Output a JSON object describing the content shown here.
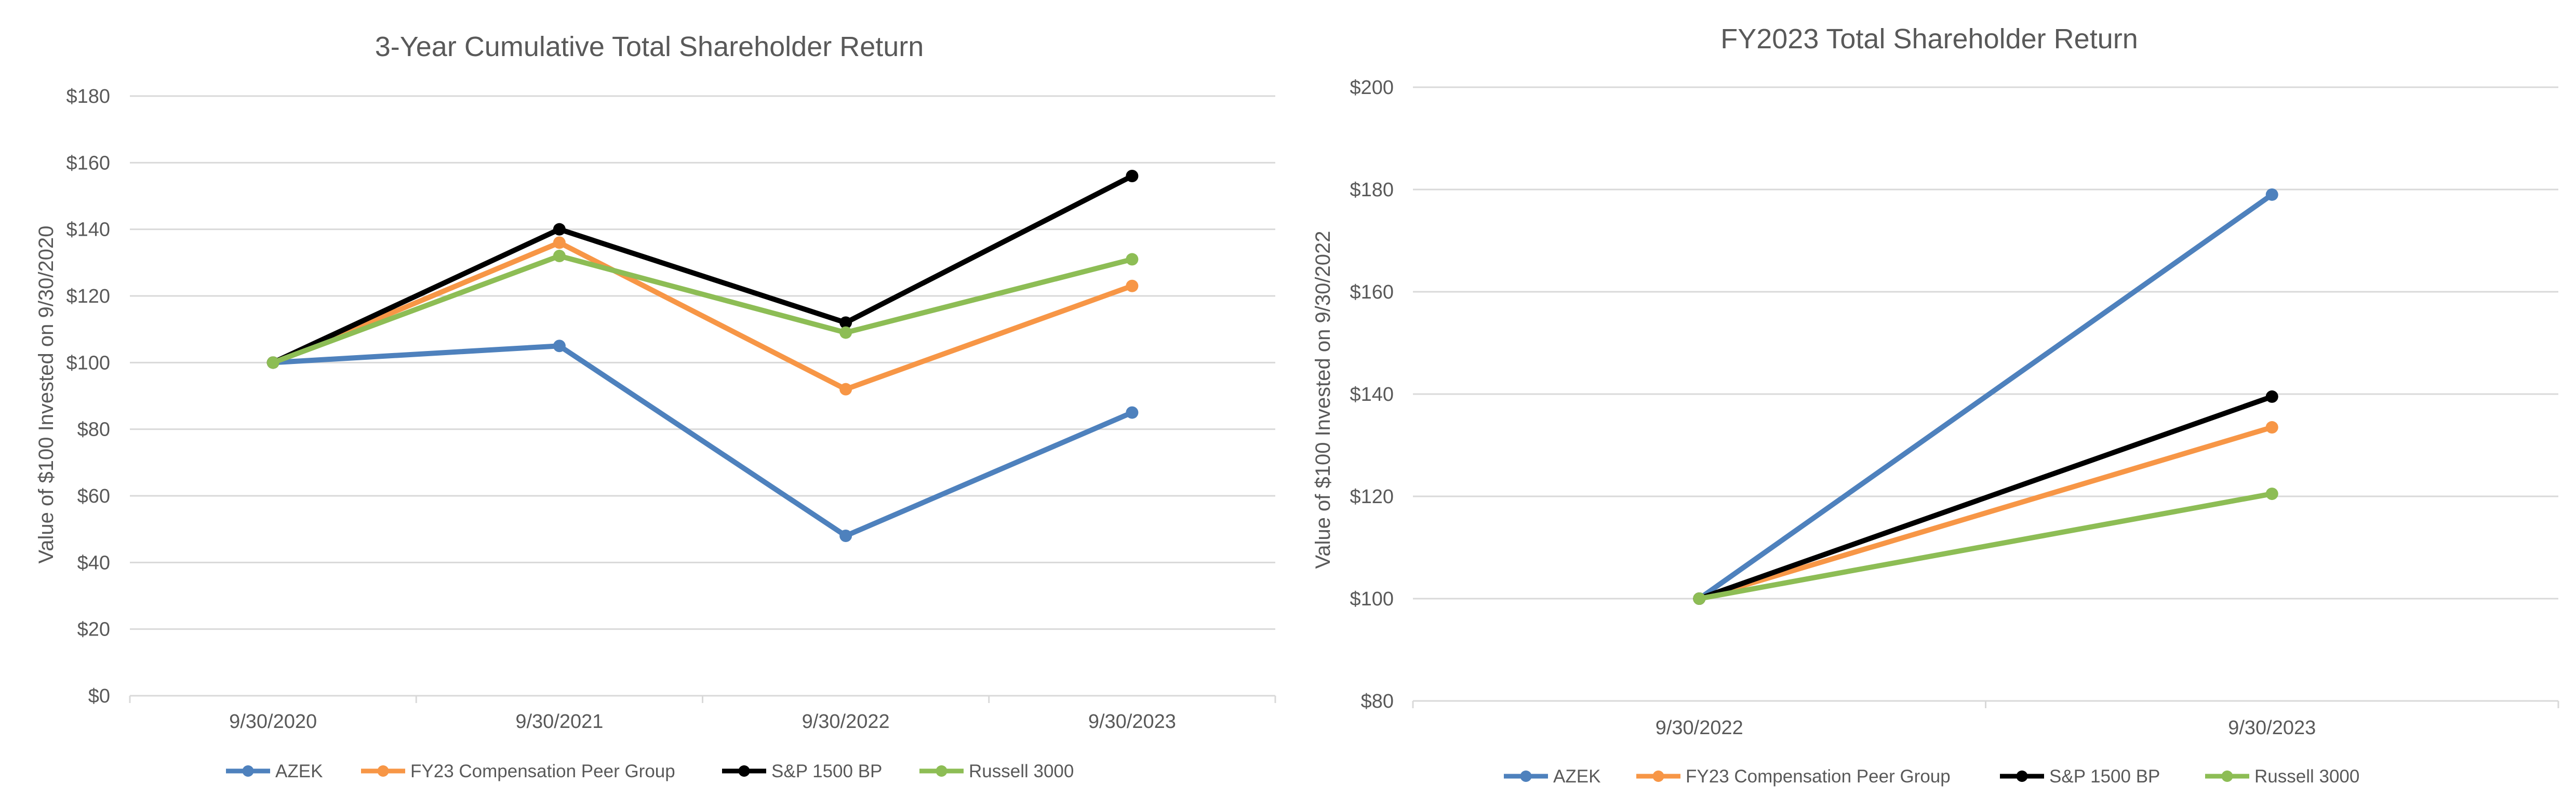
{
  "colors": {
    "AZEK": "#4e81bd",
    "peer": "#f79646",
    "sp": "#000000",
    "russell": "#8dbd55",
    "grid": "#d9d9d9",
    "text": "#595959"
  },
  "chart_data": [
    {
      "type": "line",
      "title": "3-Year Cumulative Total Shareholder Return",
      "xlabel": "",
      "ylabel": "Value of $100 Invested on 9/30/2020",
      "categories": [
        "9/30/2020",
        "9/30/2021",
        "9/30/2022",
        "9/30/2023"
      ],
      "ylim": [
        0,
        180
      ],
      "ystep": 20,
      "ytick_labels": [
        "$0",
        "$20",
        "$40",
        "$60",
        "$80",
        "$100",
        "$120",
        "$140",
        "$160",
        "$180"
      ],
      "grid": true,
      "legend_position": "bottom",
      "series": [
        {
          "name": "AZEK",
          "color": "#4e81bd",
          "values": [
            100,
            105,
            48,
            85
          ]
        },
        {
          "name": "FY23 Compensation Peer Group",
          "color": "#f79646",
          "values": [
            100,
            136,
            92,
            123
          ]
        },
        {
          "name": "S&P 1500 BP",
          "color": "#000000",
          "values": [
            100,
            140,
            112,
            156
          ]
        },
        {
          "name": "Russell 3000",
          "color": "#8dbd55",
          "values": [
            100,
            132,
            109,
            131
          ]
        }
      ]
    },
    {
      "type": "line",
      "title": "FY2023 Total Shareholder Return",
      "xlabel": "",
      "ylabel": "Value of $100 Invested on 9/30/2022",
      "categories": [
        "9/30/2022",
        "9/30/2023"
      ],
      "ylim": [
        80,
        200
      ],
      "ystep": 20,
      "ytick_labels": [
        "$80",
        "$100",
        "$120",
        "$140",
        "$160",
        "$180",
        "$200"
      ],
      "grid": true,
      "legend_position": "bottom",
      "series": [
        {
          "name": "AZEK",
          "color": "#4e81bd",
          "values": [
            100,
            179
          ]
        },
        {
          "name": "FY23 Compensation Peer Group",
          "color": "#f79646",
          "values": [
            100,
            133.5
          ]
        },
        {
          "name": "S&P 1500 BP",
          "color": "#000000",
          "values": [
            100,
            139.5
          ]
        },
        {
          "name": "Russell 3000",
          "color": "#8dbd55",
          "values": [
            100,
            120.5
          ]
        }
      ]
    }
  ]
}
